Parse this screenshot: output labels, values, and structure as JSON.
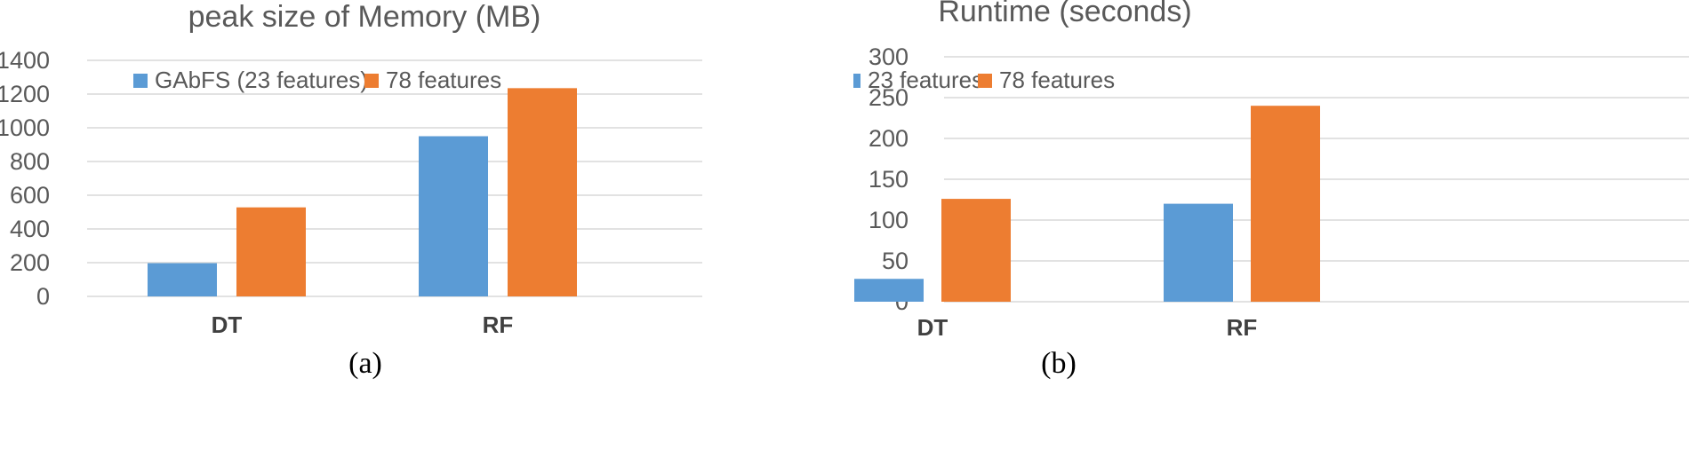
{
  "chart_data": [
    {
      "type": "bar",
      "title": "peak size of Memory (MB)",
      "categories": [
        "DT",
        "RF"
      ],
      "series": [
        {
          "name": "GAbFS (23 features)",
          "values": [
            197,
            950
          ],
          "color": "#5b9bd5"
        },
        {
          "name": "78 features",
          "values": [
            528,
            1235
          ],
          "color": "#ed7d31"
        }
      ],
      "ylim": [
        0,
        1400
      ],
      "yticks": [
        0,
        200,
        400,
        600,
        800,
        1000,
        1200,
        1400
      ],
      "grid": true,
      "legend": "top-left",
      "caption": "(a)"
    },
    {
      "type": "bar",
      "title": "Runtime (seconds)",
      "categories": [
        "DT",
        "RF"
      ],
      "series": [
        {
          "name": "23 features",
          "values": [
            28,
            120
          ],
          "color": "#5b9bd5"
        },
        {
          "name": "78 features",
          "values": [
            126,
            240
          ],
          "color": "#ed7d31"
        }
      ],
      "ylim": [
        0,
        300
      ],
      "yticks": [
        0,
        50,
        100,
        150,
        200,
        250,
        300
      ],
      "grid": true,
      "legend": "top-left",
      "caption": "(b)"
    }
  ]
}
